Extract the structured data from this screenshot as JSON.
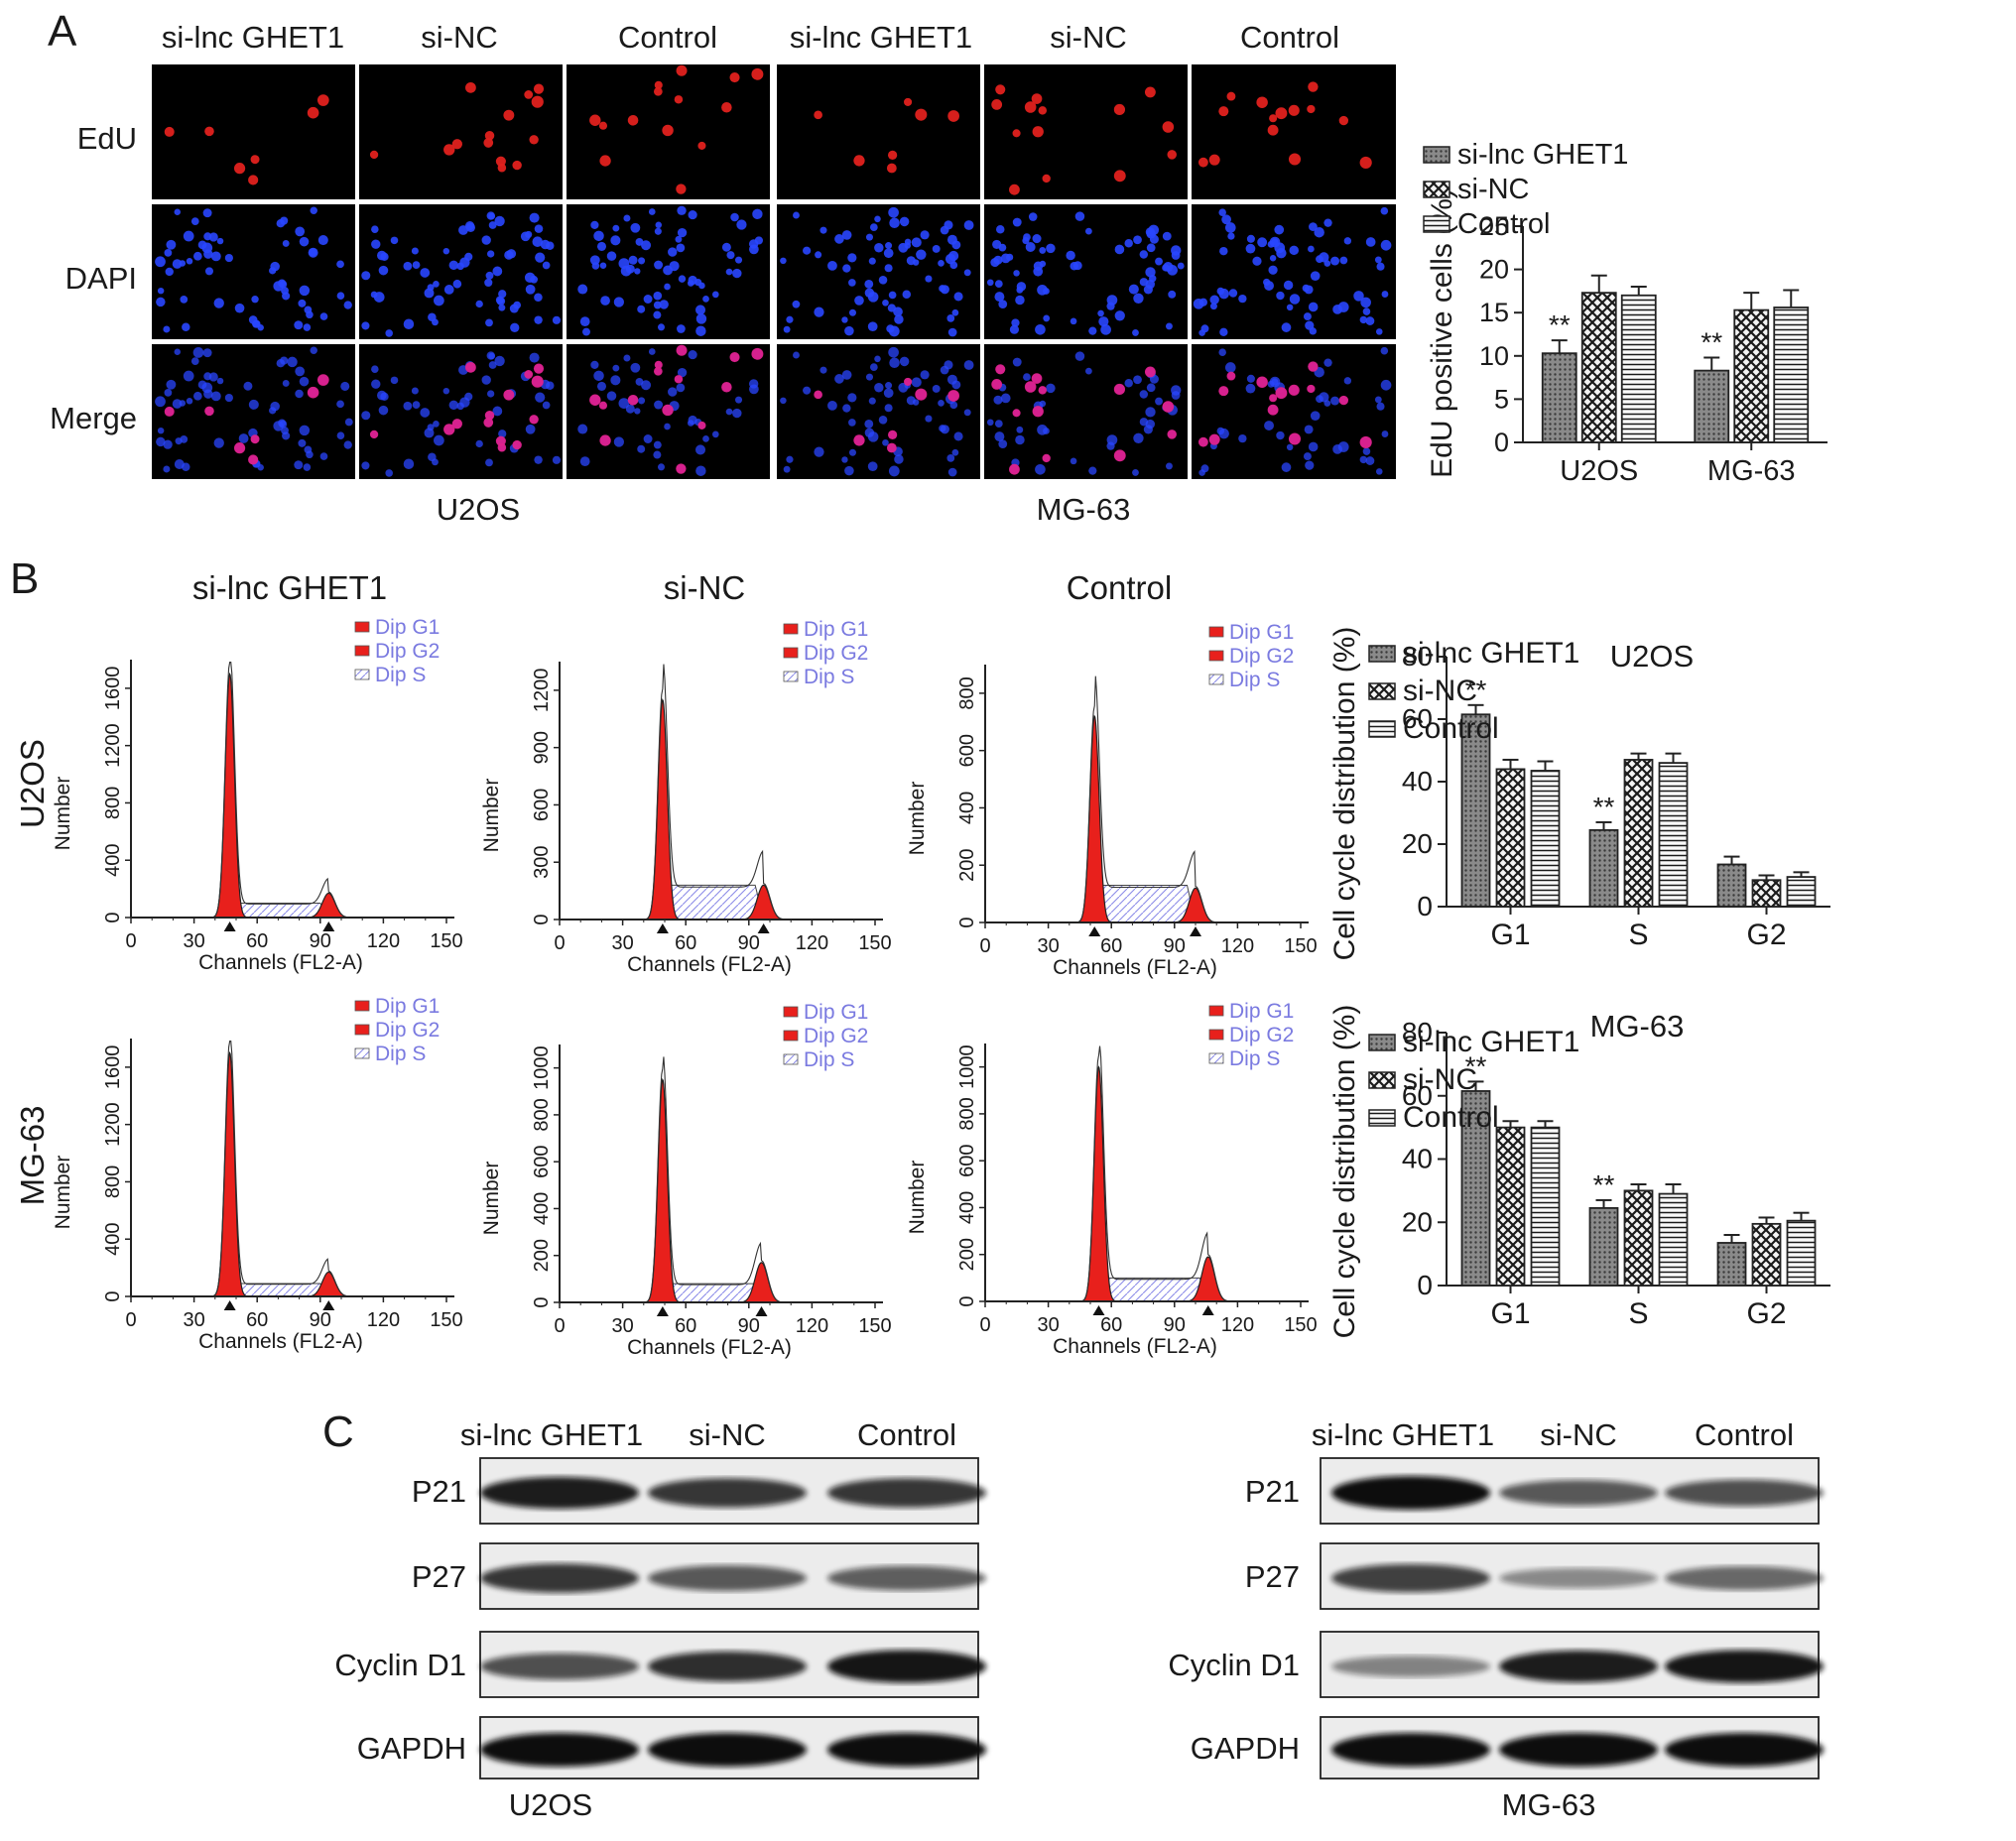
{
  "panel_letters": {
    "a": "A",
    "b": "B",
    "c": "C"
  },
  "groups": [
    "si-lnc GHET1",
    "si-NC",
    "Control"
  ],
  "panel_a": {
    "column_headers": [
      "si-lnc GHET1",
      "si-NC",
      "Control",
      "si-lnc GHET1",
      "si-NC",
      "Control"
    ],
    "row_labels": [
      "EdU",
      "DAPI",
      "Merge"
    ],
    "cell_line_labels": [
      "U2OS",
      "MG-63"
    ],
    "colors": {
      "edu": "#e0211e",
      "dapi": "#2946ff",
      "merge": "#e0218c",
      "background": "#000000"
    }
  },
  "panel_b": {
    "row_labels": [
      "U2OS",
      "MG-63"
    ],
    "column_titles": [
      "si-lnc GHET1",
      "si-NC",
      "Control"
    ],
    "legend": [
      "Dip G1",
      "Dip G2",
      "Dip S"
    ],
    "xlabel": "Channels (FL2-A)",
    "ylabel": "Number",
    "x_ticks": [
      "0",
      "30",
      "60",
      "90",
      "120",
      "150"
    ],
    "histograms": [
      {
        "row": 0,
        "col": 0,
        "yticks": [
          "0",
          "400",
          "800",
          "1200",
          "1600"
        ],
        "ymax": 1800,
        "g1_peak": 47,
        "g1_height": 1700,
        "g2_peak": 94,
        "g2_height": 170,
        "s_level": 100
      },
      {
        "row": 0,
        "col": 1,
        "yticks": [
          "0",
          "300",
          "600",
          "900",
          "1200"
        ],
        "ymax": 1350,
        "g1_peak": 49,
        "g1_height": 1150,
        "g2_peak": 97,
        "g2_height": 180,
        "s_level": 180
      },
      {
        "row": 0,
        "col": 2,
        "yticks": [
          "0",
          "200",
          "400",
          "600",
          "800"
        ],
        "ymax": 900,
        "g1_peak": 52,
        "g1_height": 720,
        "g2_peak": 100,
        "g2_height": 120,
        "s_level": 130
      },
      {
        "row": 1,
        "col": 0,
        "yticks": [
          "0",
          "400",
          "800",
          "1200",
          "1600"
        ],
        "ymax": 1800,
        "g1_peak": 47,
        "g1_height": 1700,
        "g2_peak": 94,
        "g2_height": 170,
        "s_level": 90
      },
      {
        "row": 1,
        "col": 1,
        "yticks": [
          "0",
          "200",
          "400",
          "600",
          "800",
          "1000"
        ],
        "ymax": 1100,
        "g1_peak": 49,
        "g1_height": 950,
        "g2_peak": 96,
        "g2_height": 170,
        "s_level": 80
      },
      {
        "row": 1,
        "col": 2,
        "yticks": [
          "0",
          "200",
          "400",
          "600",
          "800",
          "1000"
        ],
        "ymax": 1100,
        "g1_peak": 54,
        "g1_height": 1000,
        "g2_peak": 106,
        "g2_height": 190,
        "s_level": 100
      }
    ]
  },
  "panel_c": {
    "column_headers": [
      "si-lnc GHET1",
      "si-NC",
      "Control"
    ],
    "row_labels": [
      "P21",
      "P27",
      "Cyclin D1",
      "GAPDH"
    ],
    "cell_line_labels": [
      "U2OS",
      "MG-63"
    ],
    "band_intensity": {
      "U2OS": [
        [
          0.9,
          0.75,
          0.75
        ],
        [
          0.75,
          0.55,
          0.5
        ],
        [
          0.6,
          0.8,
          0.95
        ],
        [
          1.0,
          1.0,
          1.0
        ]
      ],
      "MG-63": [
        [
          1.0,
          0.55,
          0.6
        ],
        [
          0.7,
          0.25,
          0.45
        ],
        [
          0.3,
          0.9,
          0.95
        ],
        [
          1.0,
          1.0,
          1.0
        ]
      ]
    }
  },
  "chart_data": [
    {
      "type": "bar",
      "ylabel": "EdU positive cells (%)",
      "categories": [
        "U2OS",
        "MG-63"
      ],
      "ylim": [
        0,
        25
      ],
      "yticks": [
        0,
        5,
        10,
        15,
        20,
        25
      ],
      "series": [
        {
          "name": "si-lnc GHET1",
          "values": [
            10.3,
            8.3
          ],
          "errors": [
            1.5,
            1.5
          ]
        },
        {
          "name": "si-NC",
          "values": [
            17.3,
            15.3
          ],
          "errors": [
            2.0,
            2.0
          ]
        },
        {
          "name": "Control",
          "values": [
            17.0,
            15.6
          ],
          "errors": [
            1.0,
            2.0
          ]
        }
      ],
      "annotations": [
        {
          "category": "U2OS",
          "series": "si-lnc GHET1",
          "text": "**"
        },
        {
          "category": "MG-63",
          "series": "si-lnc GHET1",
          "text": "**"
        }
      ],
      "legend": "top-right"
    },
    {
      "type": "bar",
      "title": "U2OS",
      "ylabel": "Cell cycle distribution (%)",
      "categories": [
        "G1",
        "S",
        "G2"
      ],
      "ylim": [
        0,
        80
      ],
      "yticks": [
        0,
        20,
        40,
        60,
        80
      ],
      "series": [
        {
          "name": "si-lnc GHET1",
          "values": [
            61.5,
            24.5,
            13.5
          ],
          "errors": [
            3,
            2.5,
            2.5
          ]
        },
        {
          "name": "si-NC",
          "values": [
            44.0,
            47.0,
            8.5
          ],
          "errors": [
            3,
            2,
            1.5
          ]
        },
        {
          "name": "Control",
          "values": [
            43.5,
            46.0,
            9.5
          ],
          "errors": [
            3,
            3,
            1.5
          ]
        }
      ],
      "annotations": [
        {
          "category": "G1",
          "series": "si-lnc GHET1",
          "text": "**"
        },
        {
          "category": "S",
          "series": "si-lnc GHET1",
          "text": "**"
        }
      ],
      "legend": "top-right"
    },
    {
      "type": "bar",
      "title": "MG-63",
      "ylabel": "Cell cycle distribution (%)",
      "categories": [
        "G1",
        "S",
        "G2"
      ],
      "ylim": [
        0,
        80
      ],
      "yticks": [
        0,
        20,
        40,
        60,
        80
      ],
      "series": [
        {
          "name": "si-lnc GHET1",
          "values": [
            61.5,
            24.5,
            13.5
          ],
          "errors": [
            3,
            2.5,
            2.5
          ]
        },
        {
          "name": "si-NC",
          "values": [
            50.0,
            30.0,
            19.5
          ],
          "errors": [
            2,
            2,
            2
          ]
        },
        {
          "name": "Control",
          "values": [
            50.0,
            29.0,
            20.5
          ],
          "errors": [
            2,
            3,
            2.5
          ]
        }
      ],
      "annotations": [
        {
          "category": "G1",
          "series": "si-lnc GHET1",
          "text": "**"
        },
        {
          "category": "S",
          "series": "si-lnc GHET1",
          "text": "**"
        }
      ],
      "legend": "top-right"
    }
  ]
}
